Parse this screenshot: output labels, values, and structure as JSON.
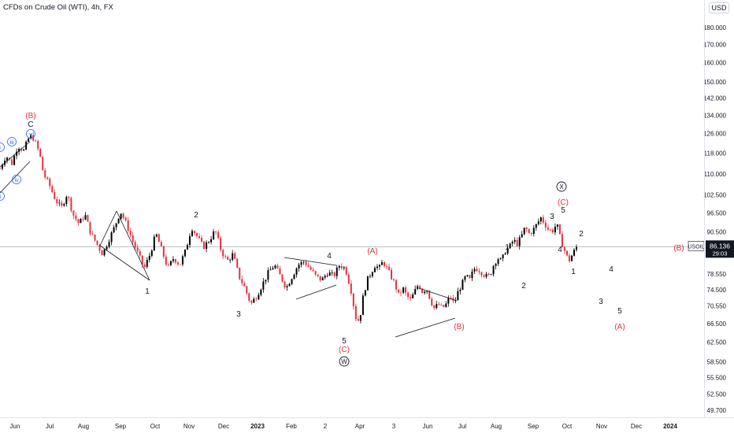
{
  "header": {
    "title": "CFDs on Crude Oil (WTI), 4h, FX",
    "currency_button": "USD"
  },
  "price_tag": {
    "symbol": "USOIL",
    "price": "86.136",
    "countdown": "29:03"
  },
  "chart_data": {
    "type": "candlestick",
    "symbol": "USOIL",
    "timeframe": "4h",
    "log_scale": true,
    "y_ticks": [
      180.0,
      170.0,
      160.0,
      150.0,
      142.0,
      134.0,
      126.0,
      118.0,
      110.0,
      102.5,
      96.5,
      90.5,
      78.55,
      74.5,
      70.55,
      66.5,
      62.5,
      58.5,
      55.5,
      52.5,
      49.7
    ],
    "y_tick_labels": [
      "180.000",
      "170.000",
      "160.000",
      "150.000",
      "142.000",
      "134.000",
      "126.000",
      "118.000",
      "110.000",
      "102.500",
      "96.500",
      "90.500",
      "78.550",
      "74.500",
      "70.550",
      "66.500",
      "62.500",
      "58.500",
      "55.500",
      "52.500",
      "49.700"
    ],
    "x_ticks": [
      "Jun",
      "Jul",
      "Aug",
      "Sep",
      "Oct",
      "Nov",
      "Dec",
      "2023",
      "Feb",
      "2",
      "Apr",
      "3",
      "Jun",
      "Jul",
      "Aug",
      "Sep",
      "Oct",
      "Nov",
      "Dec",
      "2024"
    ],
    "current_price": 86.136,
    "price_path": [
      [
        0,
        112
      ],
      [
        3,
        117
      ],
      [
        6,
        114
      ],
      [
        9,
        121
      ],
      [
        12,
        119
      ],
      [
        15,
        125
      ],
      [
        17,
        124
      ],
      [
        20,
        118
      ],
      [
        22,
        110
      ],
      [
        25,
        106
      ],
      [
        28,
        101
      ],
      [
        31,
        98
      ],
      [
        34,
        103
      ],
      [
        37,
        96
      ],
      [
        40,
        93
      ],
      [
        43,
        96
      ],
      [
        46,
        90
      ],
      [
        49,
        87
      ],
      [
        52,
        84
      ],
      [
        55,
        88
      ],
      [
        58,
        92
      ],
      [
        61,
        97
      ],
      [
        64,
        93
      ],
      [
        67,
        88
      ],
      [
        70,
        84
      ],
      [
        73,
        80
      ],
      [
        76,
        84
      ],
      [
        79,
        90
      ],
      [
        82,
        85
      ],
      [
        85,
        80
      ],
      [
        88,
        83
      ],
      [
        91,
        81
      ],
      [
        94,
        85
      ],
      [
        97,
        92
      ],
      [
        100,
        89
      ],
      [
        103,
        86
      ],
      [
        106,
        88
      ],
      [
        109,
        91
      ],
      [
        112,
        85
      ],
      [
        115,
        82
      ],
      [
        118,
        84
      ],
      [
        121,
        78
      ],
      [
        124,
        75
      ],
      [
        127,
        71
      ],
      [
        130,
        73
      ],
      [
        133,
        76
      ],
      [
        136,
        79
      ],
      [
        139,
        81
      ],
      [
        142,
        78
      ],
      [
        145,
        75
      ],
      [
        148,
        78
      ],
      [
        151,
        81
      ],
      [
        154,
        82
      ],
      [
        157,
        80
      ],
      [
        160,
        78
      ],
      [
        163,
        77
      ],
      [
        166,
        79
      ],
      [
        169,
        78
      ],
      [
        172,
        81
      ],
      [
        175,
        80
      ],
      [
        178,
        74
      ],
      [
        180,
        68
      ],
      [
        182,
        67
      ],
      [
        184,
        73
      ],
      [
        186,
        77
      ],
      [
        188,
        79
      ],
      [
        190,
        81
      ],
      [
        192,
        80
      ],
      [
        194,
        82
      ],
      [
        196,
        80
      ],
      [
        198,
        78
      ],
      [
        200,
        76
      ],
      [
        202,
        73
      ],
      [
        204,
        75
      ],
      [
        206,
        73
      ],
      [
        208,
        72
      ],
      [
        210,
        74
      ],
      [
        212,
        76
      ],
      [
        214,
        74
      ],
      [
        216,
        75
      ],
      [
        218,
        72
      ],
      [
        220,
        70
      ],
      [
        222,
        71
      ],
      [
        224,
        70
      ],
      [
        226,
        71
      ],
      [
        228,
        73
      ],
      [
        230,
        71
      ],
      [
        232,
        74
      ],
      [
        234,
        76
      ],
      [
        236,
        78
      ],
      [
        238,
        77
      ],
      [
        240,
        80
      ],
      [
        242,
        80
      ],
      [
        244,
        79
      ],
      [
        246,
        78
      ],
      [
        248,
        78
      ],
      [
        250,
        81
      ],
      [
        252,
        83
      ],
      [
        254,
        82
      ],
      [
        256,
        85
      ],
      [
        258,
        86
      ],
      [
        260,
        88
      ],
      [
        262,
        87
      ],
      [
        264,
        89
      ],
      [
        266,
        92
      ],
      [
        268,
        90
      ],
      [
        270,
        91
      ],
      [
        272,
        93
      ],
      [
        274,
        95
      ],
      [
        276,
        93
      ],
      [
        278,
        91
      ],
      [
        280,
        91
      ],
      [
        282,
        93
      ],
      [
        284,
        88
      ],
      [
        286,
        85
      ],
      [
        288,
        82
      ],
      [
        290,
        84
      ],
      [
        292,
        86
      ]
    ],
    "wave_labels": {
      "primary_b": "(B)",
      "c_top": "C",
      "sub_iii": "iii",
      "sub_iv": "iv",
      "sub_v": "v",
      "sub_i": "i",
      "sub_ii": "ii",
      "x_a": "1",
      "x_b": "2",
      "x_c": "3",
      "x_d": "4",
      "x_e": "5",
      "w_c": "(C)",
      "w_circle": "W",
      "a_mid": "(A)",
      "b_mid": "(B)",
      "r1": "1",
      "r2": "2",
      "r3": "3",
      "r4": "4",
      "r5": "5",
      "x_circle": "X",
      "rc": "(C)",
      "n1": "1",
      "n2": "2",
      "p3": "3",
      "p4": "4",
      "p5": "5",
      "pa": "(A)",
      "pb": "(B)"
    }
  }
}
